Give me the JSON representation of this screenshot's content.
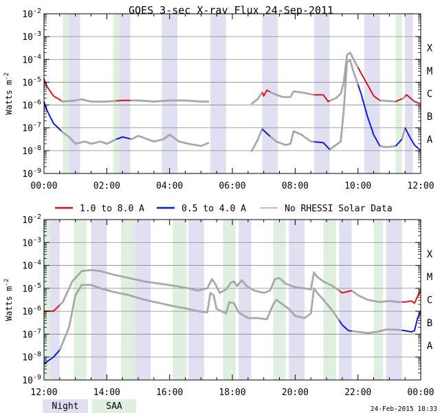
{
  "colors": {
    "red": "#dd1111",
    "blue": "#0a1ad6",
    "gray": "#999999",
    "night": "#e0e0f2",
    "saa": "#e0f0e0",
    "gridline": "#888888"
  },
  "legend": {
    "items": [
      {
        "label": "1.0 to 8.0 A",
        "color": "#dd1111"
      },
      {
        "label": "0.5 to 4.0 A",
        "color": "#0a1ad6"
      },
      {
        "label": "No RHESSI Solar Data",
        "color": "#999999"
      }
    ],
    "night_label": "Night",
    "saa_label": "SAA"
  },
  "footer": {
    "timestamp": "24-Feb-2015 18:33"
  },
  "chart_data": [
    {
      "type": "line",
      "title": "GOES 3-sec X-ray Flux   24-Sep-2011",
      "ylabel": "Watts m-2",
      "y_scale": "log",
      "ylim_exp": [
        -9,
        -2
      ],
      "y_tick_labels": [
        "10-9",
        "10-8",
        "10-7",
        "10-6",
        "10-5",
        "10-4",
        "10-3",
        "10-2"
      ],
      "flare_classes": [
        "A",
        "B",
        "C",
        "M",
        "X"
      ],
      "xlim_hours": [
        0,
        12
      ],
      "x_tick_labels": [
        "00:00",
        "02:00",
        "04:00",
        "06:00",
        "08:00",
        "10:00",
        "12:00"
      ],
      "night_intervals": [
        [
          0.8,
          1.15
        ],
        [
          2.4,
          2.75
        ],
        [
          3.75,
          4.25
        ],
        [
          5.3,
          5.8
        ],
        [
          6.95,
          7.45
        ],
        [
          8.6,
          9.1
        ],
        [
          10.2,
          10.7
        ],
        [
          11.5,
          11.75
        ]
      ],
      "saa_intervals": [
        [
          0.6,
          0.8
        ],
        [
          2.2,
          2.4
        ],
        [
          11.2,
          11.4
        ]
      ],
      "series": [
        {
          "name": "1.0 to 8.0 A (long)",
          "points": [
            [
              0,
              -4.85
            ],
            [
              0.1,
              -5.2
            ],
            [
              0.3,
              -5.6
            ],
            [
              0.6,
              -5.85
            ],
            [
              1.0,
              -5.8
            ],
            [
              1.2,
              -5.75
            ],
            [
              1.5,
              -5.85
            ],
            [
              2.0,
              -5.85
            ],
            [
              2.5,
              -5.8
            ],
            [
              3.0,
              -5.8
            ],
            [
              3.5,
              -5.85
            ],
            [
              4.0,
              -5.8
            ],
            [
              4.5,
              -5.8
            ],
            [
              5.0,
              -5.85
            ],
            [
              5.25,
              -5.85
            ],
            null,
            [
              6.6,
              -5.95
            ],
            [
              6.8,
              -5.75
            ],
            [
              6.95,
              -5.45
            ],
            [
              7.0,
              -5.6
            ],
            [
              7.1,
              -5.35
            ],
            [
              7.3,
              -5.5
            ],
            [
              7.6,
              -5.65
            ],
            [
              7.85,
              -5.65
            ],
            [
              7.95,
              -5.4
            ],
            [
              8.2,
              -5.45
            ],
            [
              8.6,
              -5.55
            ],
            [
              8.9,
              -5.55
            ],
            [
              9.05,
              -5.85
            ],
            [
              9.3,
              -5.7
            ],
            [
              9.45,
              -5.5
            ],
            [
              9.55,
              -5.0
            ],
            [
              9.65,
              -3.8
            ],
            [
              9.75,
              -3.7
            ],
            [
              9.9,
              -4.1
            ],
            [
              10.1,
              -4.6
            ],
            [
              10.3,
              -5.1
            ],
            [
              10.5,
              -5.6
            ],
            [
              10.7,
              -5.8
            ],
            [
              11.2,
              -5.85
            ],
            [
              11.45,
              -5.7
            ],
            [
              11.55,
              -5.55
            ],
            [
              11.8,
              -5.85
            ],
            [
              12.0,
              -5.95
            ]
          ]
        },
        {
          "name": "0.5 to 4.0 A (short)",
          "points": [
            [
              0,
              -5.85
            ],
            [
              0.1,
              -6.25
            ],
            [
              0.3,
              -6.8
            ],
            [
              0.6,
              -7.2
            ],
            [
              0.8,
              -7.4
            ],
            [
              1.0,
              -7.7
            ],
            [
              1.3,
              -7.6
            ],
            [
              1.5,
              -7.7
            ],
            [
              1.8,
              -7.6
            ],
            [
              2.0,
              -7.7
            ],
            [
              2.3,
              -7.5
            ],
            [
              2.5,
              -7.4
            ],
            [
              2.8,
              -7.5
            ],
            [
              3.0,
              -7.35
            ],
            [
              3.2,
              -7.45
            ],
            [
              3.5,
              -7.6
            ],
            [
              3.8,
              -7.5
            ],
            [
              4.0,
              -7.3
            ],
            [
              4.3,
              -7.6
            ],
            [
              4.6,
              -7.7
            ],
            [
              5.0,
              -7.8
            ],
            [
              5.25,
              -7.65
            ],
            null,
            [
              6.6,
              -8.05
            ],
            [
              6.8,
              -7.55
            ],
            [
              6.95,
              -7.05
            ],
            [
              7.1,
              -7.25
            ],
            [
              7.4,
              -7.6
            ],
            [
              7.7,
              -7.75
            ],
            [
              7.85,
              -7.7
            ],
            [
              7.95,
              -7.15
            ],
            [
              8.2,
              -7.3
            ],
            [
              8.5,
              -7.6
            ],
            [
              8.9,
              -7.65
            ],
            [
              9.1,
              -7.95
            ],
            [
              9.3,
              -7.75
            ],
            [
              9.45,
              -7.6
            ],
            [
              9.55,
              -6.2
            ],
            [
              9.65,
              -4.1
            ],
            [
              9.75,
              -4.05
            ],
            [
              9.85,
              -4.5
            ],
            [
              10.1,
              -5.5
            ],
            [
              10.3,
              -6.5
            ],
            [
              10.5,
              -7.3
            ],
            [
              10.7,
              -7.8
            ],
            [
              10.9,
              -7.85
            ],
            [
              11.2,
              -7.8
            ],
            [
              11.4,
              -7.5
            ],
            [
              11.5,
              -7.0
            ],
            [
              11.65,
              -7.4
            ],
            [
              11.8,
              -7.75
            ],
            [
              12.0,
              -8.0
            ]
          ]
        }
      ],
      "no_rhessi_gray_segments": [
        [
          0.55,
          2.3
        ],
        [
          2.75,
          6.95
        ],
        [
          7.2,
          8.0
        ],
        [
          8.0,
          8.6
        ],
        [
          9.1,
          10.0
        ],
        [
          10.7,
          11.2
        ],
        [
          11.4,
          11.5
        ]
      ]
    },
    {
      "type": "line",
      "title": "",
      "ylabel": "Watts m-2",
      "y_scale": "log",
      "ylim_exp": [
        -9,
        -2
      ],
      "y_tick_labels": [
        "10-9",
        "10-8",
        "10-7",
        "10-6",
        "10-5",
        "10-4",
        "10-3",
        "10-2"
      ],
      "flare_classes": [
        "A",
        "B",
        "C",
        "M",
        "X"
      ],
      "xlim_hours": [
        12,
        24
      ],
      "x_tick_labels": [
        "12:00",
        "14:00",
        "16:00",
        "18:00",
        "20:00",
        "22:00",
        "00:00"
      ],
      "night_intervals": [
        [
          12.2,
          12.5
        ],
        [
          13.5,
          14.0
        ],
        [
          14.9,
          15.4
        ],
        [
          16.6,
          17.1
        ],
        [
          18.2,
          18.6
        ],
        [
          19.8,
          20.3
        ],
        [
          21.4,
          21.8
        ],
        [
          22.9,
          23.4
        ]
      ],
      "saa_intervals": [
        [
          12.0,
          12.2
        ],
        [
          12.95,
          13.35
        ],
        [
          14.45,
          14.9
        ],
        [
          16.1,
          16.55
        ],
        [
          17.7,
          18.1
        ],
        [
          19.3,
          19.7
        ],
        [
          20.9,
          21.3
        ],
        [
          22.5,
          22.8
        ]
      ],
      "series": [
        {
          "name": "1.0 to 8.0 A (long)",
          "points": [
            [
              12.0,
              -6.0
            ],
            [
              12.3,
              -6.0
            ],
            [
              12.6,
              -5.6
            ],
            [
              12.9,
              -4.7
            ],
            [
              13.2,
              -4.25
            ],
            [
              13.5,
              -4.2
            ],
            [
              13.8,
              -4.25
            ],
            [
              14.2,
              -4.4
            ],
            [
              14.7,
              -4.55
            ],
            [
              15.2,
              -4.7
            ],
            [
              15.7,
              -4.8
            ],
            [
              16.2,
              -4.9
            ],
            [
              16.6,
              -5.0
            ],
            [
              16.9,
              -5.1
            ],
            [
              17.2,
              -5.0
            ],
            [
              17.35,
              -4.6
            ],
            [
              17.45,
              -4.8
            ],
            [
              17.6,
              -5.2
            ],
            [
              17.8,
              -5.05
            ],
            [
              17.95,
              -4.75
            ],
            [
              18.05,
              -4.7
            ],
            [
              18.15,
              -4.9
            ],
            [
              18.3,
              -4.65
            ],
            [
              18.45,
              -4.9
            ],
            [
              18.7,
              -5.1
            ],
            [
              19.0,
              -5.2
            ],
            [
              19.2,
              -5.1
            ],
            [
              19.35,
              -4.6
            ],
            [
              19.5,
              -4.55
            ],
            [
              19.7,
              -4.8
            ],
            [
              20.0,
              -4.95
            ],
            [
              20.3,
              -5.0
            ],
            [
              20.5,
              -5.05
            ],
            [
              20.6,
              -4.3
            ],
            [
              20.7,
              -4.5
            ],
            [
              20.9,
              -4.7
            ],
            [
              21.2,
              -4.9
            ],
            [
              21.5,
              -5.2
            ],
            [
              21.8,
              -5.1
            ],
            [
              22.0,
              -5.3
            ],
            [
              22.3,
              -5.5
            ],
            [
              22.7,
              -5.6
            ],
            [
              23.0,
              -5.55
            ],
            [
              23.3,
              -5.6
            ],
            [
              23.5,
              -5.6
            ],
            [
              23.7,
              -5.55
            ],
            [
              23.8,
              -5.65
            ],
            [
              23.95,
              -5.2
            ],
            [
              24.0,
              -5.1
            ]
          ]
        },
        {
          "name": "0.5 to 4.0 A (short)",
          "points": [
            [
              12.0,
              -8.3
            ],
            [
              12.3,
              -8.0
            ],
            [
              12.5,
              -7.7
            ],
            [
              12.8,
              -6.7
            ],
            [
              13.0,
              -5.3
            ],
            [
              13.2,
              -4.85
            ],
            [
              13.5,
              -4.85
            ],
            [
              13.8,
              -5.0
            ],
            [
              14.2,
              -5.15
            ],
            [
              14.7,
              -5.3
            ],
            [
              15.2,
              -5.5
            ],
            [
              15.7,
              -5.65
            ],
            [
              16.2,
              -5.8
            ],
            [
              16.6,
              -5.9
            ],
            [
              16.9,
              -6.0
            ],
            [
              17.2,
              -6.05
            ],
            [
              17.3,
              -5.2
            ],
            [
              17.4,
              -5.3
            ],
            [
              17.5,
              -5.9
            ],
            [
              17.8,
              -6.1
            ],
            [
              17.9,
              -5.6
            ],
            [
              18.05,
              -5.65
            ],
            [
              18.2,
              -6.05
            ],
            [
              18.5,
              -6.3
            ],
            [
              18.8,
              -6.3
            ],
            [
              19.1,
              -6.35
            ],
            [
              19.3,
              -5.7
            ],
            [
              19.4,
              -5.5
            ],
            [
              19.5,
              -5.6
            ],
            [
              19.8,
              -5.9
            ],
            [
              20.0,
              -6.2
            ],
            [
              20.3,
              -6.3
            ],
            [
              20.5,
              -6.1
            ],
            [
              20.6,
              -5.0
            ],
            [
              20.7,
              -5.2
            ],
            [
              20.9,
              -5.5
            ],
            [
              21.2,
              -6.0
            ],
            [
              21.5,
              -6.6
            ],
            [
              21.7,
              -6.85
            ],
            [
              22.0,
              -6.9
            ],
            [
              22.3,
              -6.95
            ],
            [
              22.6,
              -6.9
            ],
            [
              22.9,
              -6.8
            ],
            [
              23.2,
              -6.8
            ],
            [
              23.5,
              -6.85
            ],
            [
              23.7,
              -6.9
            ],
            [
              23.8,
              -6.85
            ],
            [
              23.9,
              -6.3
            ],
            [
              24.0,
              -6.0
            ]
          ]
        }
      ],
      "no_rhessi_gray_segments": [
        [
          12.5,
          21.4
        ],
        [
          21.8,
          23.4
        ]
      ]
    }
  ]
}
